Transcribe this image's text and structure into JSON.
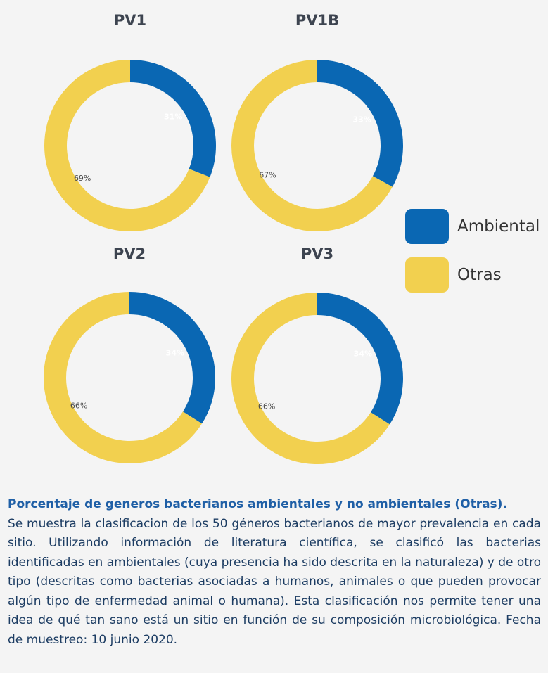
{
  "chart_data": [
    {
      "type": "pie",
      "title": "PV1",
      "categories": [
        "Ambiental",
        "Otras"
      ],
      "values": [
        31,
        69
      ],
      "labels": [
        "31%",
        "69%"
      ]
    },
    {
      "type": "pie",
      "title": "PV1B",
      "categories": [
        "Ambiental",
        "Otras"
      ],
      "values": [
        33,
        67
      ],
      "labels": [
        "33%",
        "67%"
      ]
    },
    {
      "type": "pie",
      "title": "PV2",
      "categories": [
        "Ambiental",
        "Otras"
      ],
      "values": [
        34,
        66
      ],
      "labels": [
        "34%",
        "66%"
      ]
    },
    {
      "type": "pie",
      "title": "PV3",
      "categories": [
        "Ambiental",
        "Otras"
      ],
      "values": [
        34,
        66
      ],
      "labels": [
        "34%",
        "66%"
      ]
    }
  ],
  "colors": {
    "ambiental": "#0a67b3",
    "otras": "#f2d04f"
  },
  "legend": {
    "ambiental": "Ambiental",
    "otras": "Otras"
  },
  "caption": {
    "title": "Porcentaje de generos bacterianos ambientales y no ambientales (Otras).",
    "body": "Se muestra la clasificacion de los 50 géneros bacterianos de mayor prevalencia en cada sitio. Utilizando información de literatura científica, se clasificó las bacterias identificadas en ambientales (cuya presencia ha sido descrita en la naturaleza) y de otro tipo (descritas como bacterias asociadas a humanos, animales o que pueden provocar algún tipo de enfermedad animal o humana). Esta clasificación nos permite tener una idea de qué tan sano está un sitio en función de su composición microbiológica. Fecha de muestreo: 10 junio 2020."
  }
}
